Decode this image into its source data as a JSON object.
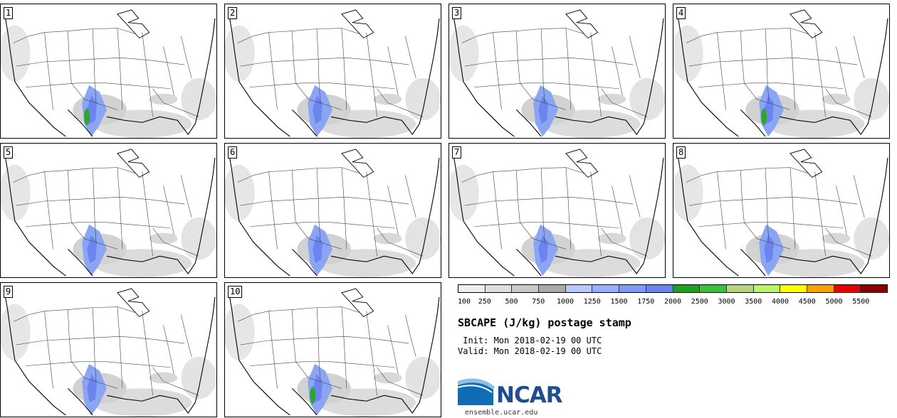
{
  "panels": [
    {
      "label": "1"
    },
    {
      "label": "2"
    },
    {
      "label": "3"
    },
    {
      "label": "4"
    },
    {
      "label": "5"
    },
    {
      "label": "6"
    },
    {
      "label": "7"
    },
    {
      "label": "8"
    },
    {
      "label": "9"
    },
    {
      "label": "10"
    }
  ],
  "colorbar": {
    "colors": [
      "#eeeeee",
      "#dedede",
      "#c9c9c9",
      "#a9a9a9",
      "#b8c8fb",
      "#98b0f7",
      "#7f9cf5",
      "#6c84ee",
      "#1ea11e",
      "#3cbf3c",
      "#b6d387",
      "#b8f56c",
      "#ffff00",
      "#f5a300",
      "#e80000",
      "#8b0000"
    ],
    "labels": [
      "100",
      "250",
      "500",
      "750",
      "1000",
      "1250",
      "1500",
      "1750",
      "2000",
      "2500",
      "3000",
      "3500",
      "4000",
      "4500",
      "5000",
      "5500"
    ]
  },
  "title": "SBCAPE (J/kg) postage stamp",
  "init_line": " Init: Mon 2018-02-19 00 UTC",
  "valid_line": "Valid: Mon 2018-02-19 00 UTC",
  "logo": {
    "name": "NCAR",
    "url": "ensemble.ucar.edu"
  }
}
